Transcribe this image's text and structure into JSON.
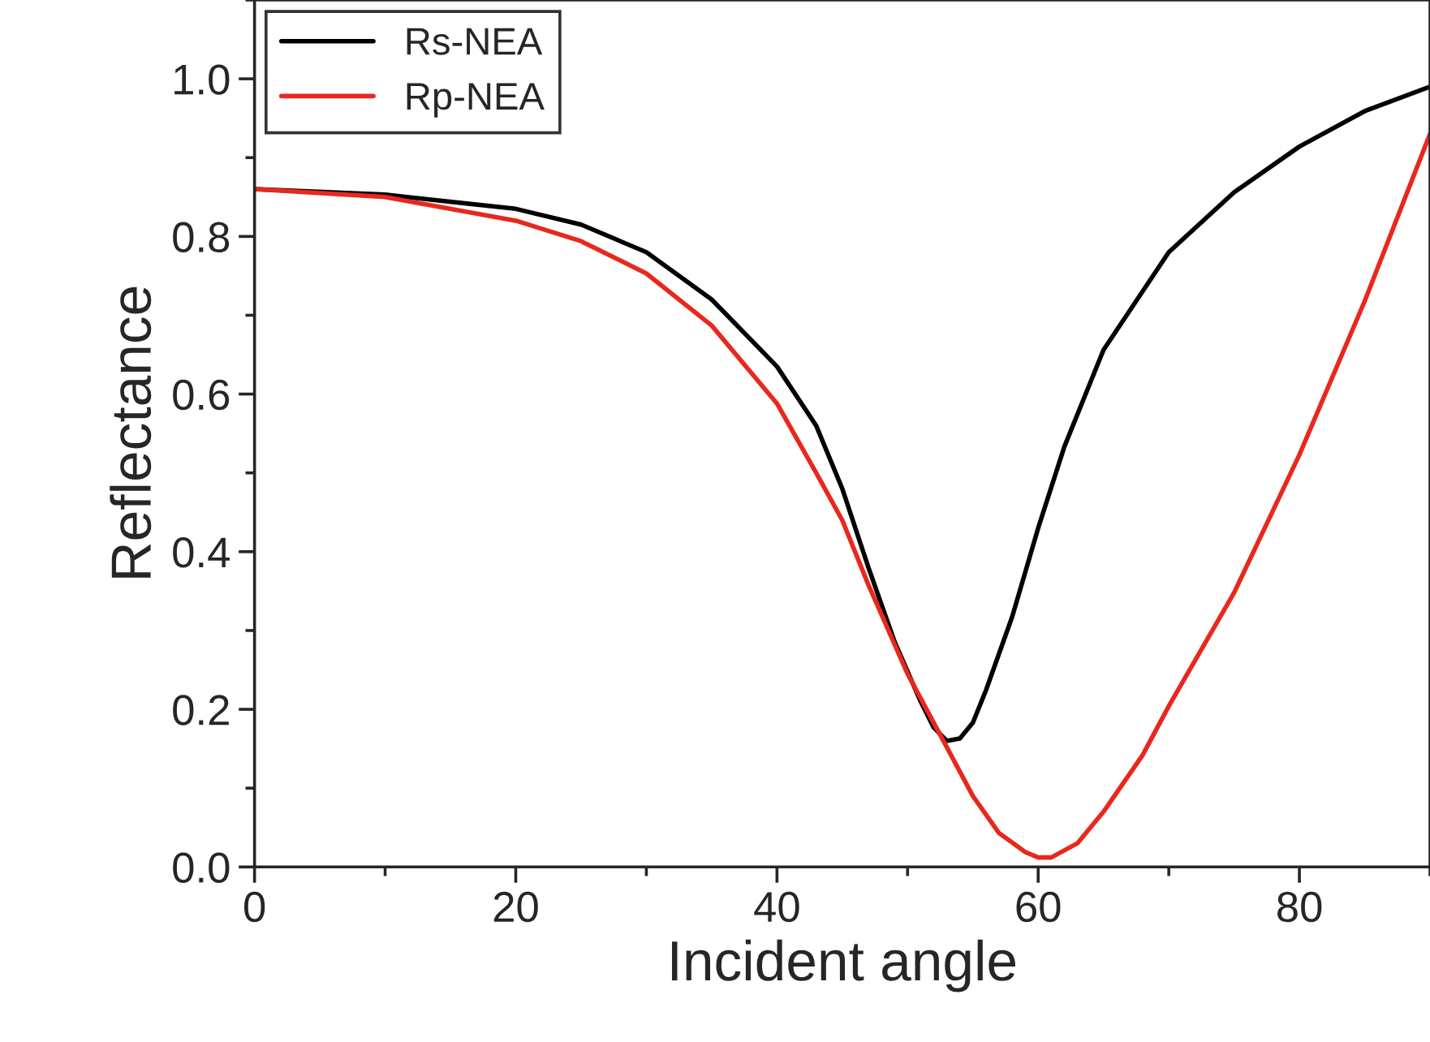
{
  "chart_data": {
    "type": "line",
    "xlabel": "Incident angle",
    "ylabel": "Reflectance",
    "xlim": [
      0,
      90
    ],
    "ylim": [
      0,
      1.1
    ],
    "xticks": [
      0,
      20,
      40,
      60,
      80
    ],
    "yticks": [
      {
        "value": 0,
        "label": "0.0"
      },
      0.2,
      0.4,
      0.6,
      0.8,
      {
        "value": 1,
        "label": "1.0"
      }
    ],
    "grid": false,
    "legend": "top left",
    "line_style": "solid",
    "marker": "none",
    "series": [
      {
        "name": "Rs-NEA",
        "color": "#000000",
        "x": [
          0,
          10,
          20,
          25,
          30,
          35,
          40,
          43,
          45,
          47,
          49,
          51,
          52,
          53,
          54,
          55,
          56,
          58,
          60,
          62,
          65,
          70,
          75,
          80,
          85,
          90
        ],
        "values": [
          0.86,
          0.853,
          0.835,
          0.815,
          0.78,
          0.72,
          0.635,
          0.56,
          0.48,
          0.38,
          0.286,
          0.21,
          0.177,
          0.16,
          0.163,
          0.183,
          0.224,
          0.317,
          0.43,
          0.533,
          0.656,
          0.78,
          0.856,
          0.914,
          0.959,
          0.99
        ]
      },
      {
        "name": "Rp-NEA",
        "color": "#e8281e",
        "x": [
          0,
          10,
          20,
          25,
          30,
          35,
          40,
          43,
          45,
          47,
          50,
          53,
          55,
          57,
          59,
          60,
          61,
          63,
          65,
          68,
          70,
          75,
          80,
          85,
          90
        ],
        "values": [
          0.86,
          0.85,
          0.82,
          0.794,
          0.753,
          0.687,
          0.588,
          0.5,
          0.44,
          0.358,
          0.245,
          0.152,
          0.09,
          0.043,
          0.019,
          0.012,
          0.012,
          0.03,
          0.07,
          0.142,
          0.204,
          0.348,
          0.523,
          0.718,
          0.93
        ]
      }
    ]
  }
}
